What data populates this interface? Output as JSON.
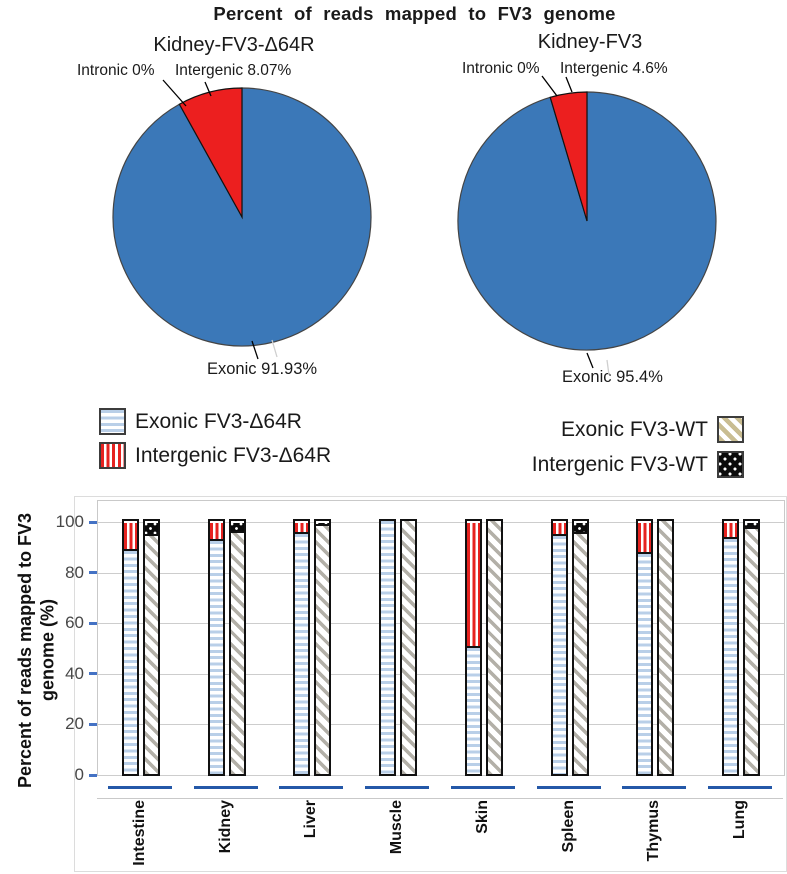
{
  "main_title": "Percent of reads mapped to FV3 genome",
  "colors": {
    "pie_exonic_blue": "#3b78b8",
    "pie_intergenic_red": "#ec1f1f",
    "bar_stripe_blue": "#b9cfe8",
    "bar_stripe_red": "#e62320",
    "bar_hatch_gray": "#b3b0a8",
    "legend_hatch_tan": "#c9bd92",
    "dots_swatch_black": "#0b0b0b",
    "axis_tick_blue": "#4472c4",
    "category_baseline_blue": "#2458a8",
    "gridline_gray": "#cdcdcd"
  },
  "legend": {
    "left": [
      {
        "label": "Exonic FV3-Δ64R",
        "pattern": "blue-horizontal-stripes"
      },
      {
        "label": "Intergenic FV3-Δ64R",
        "pattern": "red-vertical-stripes"
      }
    ],
    "right": [
      {
        "label": "Exonic FV3-WT",
        "pattern": "tan-diagonal-stripes"
      },
      {
        "label": "Intergenic FV3-WT",
        "pattern": "black-with-white-dots"
      }
    ]
  },
  "chart_data": [
    {
      "type": "pie",
      "title": "Kidney-FV3-Δ64R",
      "slices": [
        {
          "label": "Exonic",
          "value": 91.93,
          "color": "#3b78b8"
        },
        {
          "label": "Intergenic",
          "value": 8.07,
          "color": "#ec1f1f"
        },
        {
          "label": "Intronic",
          "value": 0,
          "color": "#3b78b8"
        }
      ],
      "callouts": {
        "intronic": "Intronic 0%",
        "intergenic": "Intergenic 8.07%",
        "exonic": "Exonic 91.93%"
      }
    },
    {
      "type": "pie",
      "title": "Kidney-FV3",
      "slices": [
        {
          "label": "Exonic",
          "value": 95.4,
          "color": "#3b78b8"
        },
        {
          "label": "Intergenic",
          "value": 4.6,
          "color": "#ec1f1f"
        },
        {
          "label": "Intronic",
          "value": 0,
          "color": "#3b78b8"
        }
      ],
      "callouts": {
        "intronic": "Intronic 0%",
        "intergenic": "Intergenic 4.6%",
        "exonic": "Exonic 95.4%"
      }
    },
    {
      "type": "bar",
      "stacked": true,
      "categories": [
        "Intestine",
        "Kidney",
        "Liver",
        "Muscle",
        "Skin",
        "Spleen",
        "Thymus",
        "Lung"
      ],
      "series": [
        {
          "name": "Exonic FV3-Δ64R",
          "pattern": "blue-horizontal-stripes",
          "values": [
            88,
            92,
            95,
            100,
            50,
            94,
            87,
            93
          ]
        },
        {
          "name": "Intergenic FV3-Δ64R",
          "pattern": "red-vertical-stripes",
          "values": [
            12,
            8,
            5,
            0,
            50,
            6,
            13,
            7
          ]
        },
        {
          "name": "Exonic FV3-WT",
          "pattern": "tan-diagonal-stripes",
          "values": [
            94,
            95.4,
            98,
            100,
            100,
            95,
            100,
            97
          ]
        },
        {
          "name": "Intergenic FV3-WT",
          "pattern": "black-with-white-dots",
          "values": [
            6,
            4.6,
            2,
            0,
            0,
            5,
            0,
            3
          ]
        }
      ],
      "ylabel": "Percent of reads mapped to FV3 genome (%)",
      "ylim": [
        0,
        100
      ],
      "yticks": [
        0,
        20,
        40,
        60,
        80,
        100
      ],
      "grid": true,
      "legend_position": "above-chart"
    }
  ]
}
